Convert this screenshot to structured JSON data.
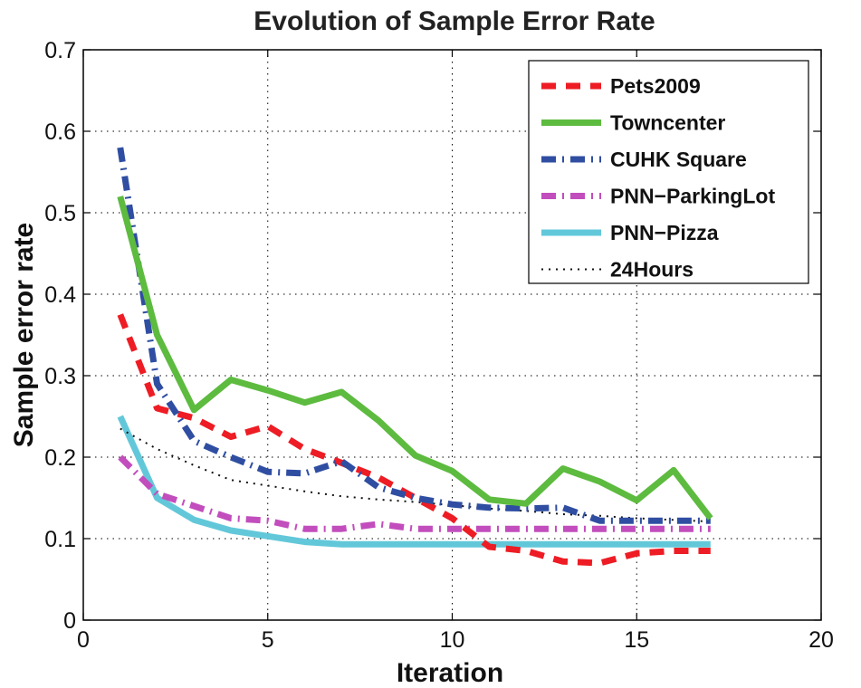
{
  "chart_data": {
    "type": "line",
    "title": "Evolution of Sample Error Rate",
    "xlabel": "Iteration",
    "ylabel": "Sample error rate",
    "xlim": [
      0,
      20
    ],
    "ylim": [
      0,
      0.7
    ],
    "xticks": [
      0,
      5,
      10,
      15,
      20
    ],
    "yticks": [
      0,
      0.1,
      0.2,
      0.3,
      0.4,
      0.5,
      0.6,
      0.7
    ],
    "xtick_labels": [
      "0",
      "5",
      "10",
      "15",
      "20"
    ],
    "ytick_labels": [
      "0",
      "0.1",
      "0.2",
      "0.3",
      "0.4",
      "0.5",
      "0.6",
      "0.7"
    ],
    "grid": true,
    "legend_position": "top-right",
    "x": [
      1,
      2,
      3,
      4,
      5,
      6,
      7,
      8,
      9,
      10,
      11,
      12,
      13,
      14,
      15,
      16,
      17
    ],
    "series": [
      {
        "name": "Pets2009",
        "color": "#ee1c24",
        "style": "dashed",
        "values": [
          0.375,
          0.26,
          0.248,
          0.225,
          0.238,
          0.21,
          0.193,
          0.175,
          0.15,
          0.125,
          0.09,
          0.085,
          0.072,
          0.07,
          0.082,
          0.085,
          0.085
        ]
      },
      {
        "name": "Towncenter",
        "color": "#5dbb3f",
        "style": "solid",
        "values": [
          0.52,
          0.35,
          0.258,
          0.295,
          0.282,
          0.267,
          0.28,
          0.245,
          0.202,
          0.183,
          0.148,
          0.143,
          0.186,
          0.17,
          0.147,
          0.184,
          0.125
        ]
      },
      {
        "name": "CUHK Square",
        "color": "#2f4ea2",
        "style": "dashdot",
        "values": [
          0.58,
          0.29,
          0.22,
          0.2,
          0.182,
          0.18,
          0.195,
          0.163,
          0.15,
          0.142,
          0.138,
          0.137,
          0.138,
          0.122,
          0.122,
          0.122,
          0.122
        ]
      },
      {
        "name": "PNN−ParkingLot",
        "color": "#c24dbd",
        "style": "dashdot",
        "values": [
          0.2,
          0.155,
          0.14,
          0.125,
          0.122,
          0.112,
          0.112,
          0.118,
          0.112,
          0.112,
          0.112,
          0.112,
          0.112,
          0.112,
          0.112,
          0.112,
          0.112
        ]
      },
      {
        "name": "PNN−Pizza",
        "color": "#62c8d9",
        "style": "solid",
        "values": [
          0.25,
          0.15,
          0.123,
          0.11,
          0.103,
          0.096,
          0.093,
          0.093,
          0.093,
          0.093,
          0.093,
          0.093,
          0.093,
          0.093,
          0.093,
          0.093,
          0.093
        ]
      },
      {
        "name": "24Hours",
        "color": "#111111",
        "style": "dotted",
        "values": [
          0.235,
          0.21,
          0.19,
          0.172,
          0.165,
          0.158,
          0.152,
          0.148,
          0.145,
          0.141,
          0.137,
          0.134,
          0.13,
          0.128,
          0.125,
          0.123,
          0.121
        ]
      }
    ]
  }
}
